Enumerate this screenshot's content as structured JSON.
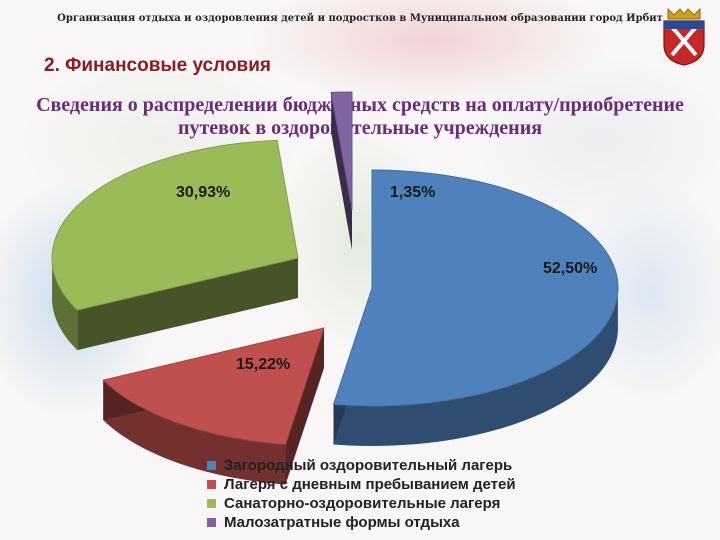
{
  "header": {
    "org_title": "Организация отдыха и оздоровления детей и подростков в Муниципальном образовании город Ирбит",
    "emblem_icon": "irbit-coat-of-arms-icon"
  },
  "section_title": "2. Финансовые условия",
  "chart_data": {
    "type": "pie",
    "title": "Сведения о распределении бюджетных средств на оплату/приобретение путевок в оздоровительные учреждения",
    "style": "3d-exploded",
    "legend_position": "bottom",
    "slices": [
      {
        "name": "Загородный оздоровительный лагерь",
        "value": 52.5,
        "label": "52,50%",
        "color": "#4f81bd"
      },
      {
        "name": "Лагеря с дневным пребыванием детей",
        "value": 15.22,
        "label": "15,22%",
        "color": "#c0504d"
      },
      {
        "name": "Санаторно-оздоровительные лагеря",
        "value": 30.93,
        "label": "30,93%",
        "color": "#9bbb59"
      },
      {
        "name": "Малозатратные формы отдыха",
        "value": 1.35,
        "label": "1,35%",
        "color": "#8064a2"
      }
    ]
  }
}
